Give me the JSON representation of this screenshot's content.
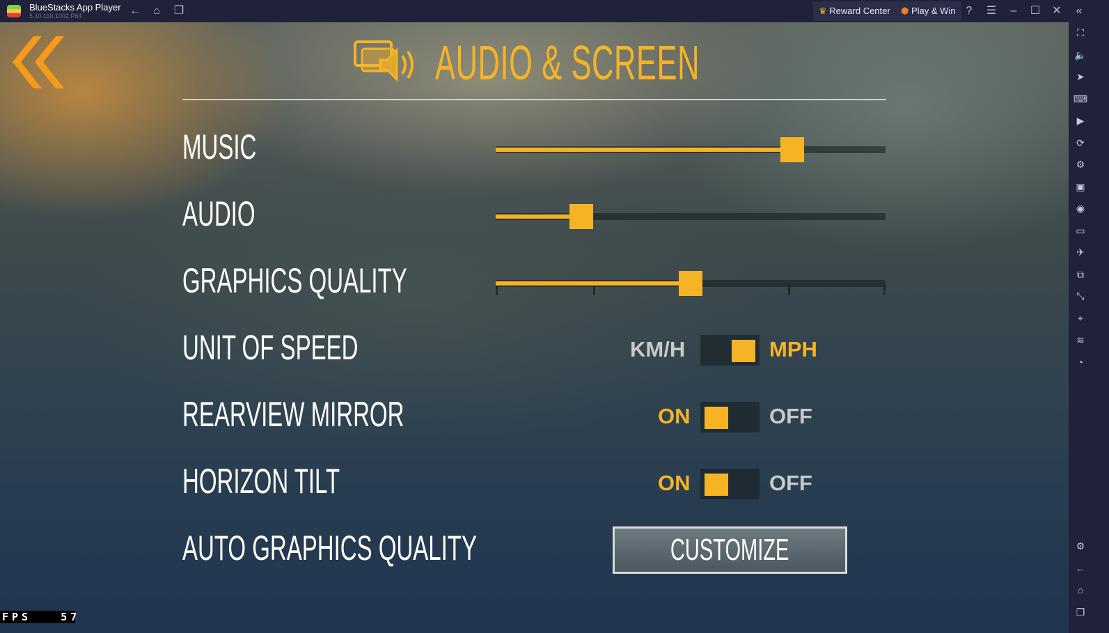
{
  "window": {
    "app_name": "BlueStacks App Player",
    "version": "5.10.110.1002 P64",
    "reward_center": "Reward Center",
    "play_win": "Play & Win"
  },
  "sidebar": {
    "icons": [
      "fullscreen-icon",
      "volume-icon",
      "pointer-icon",
      "keyboard-icon",
      "record-icon",
      "rotate-icon",
      "macro-icon",
      "apk-icon",
      "screenshot-icon",
      "folder-icon",
      "airplane-icon",
      "multi-instance-icon",
      "shake-icon",
      "location-icon",
      "layers-icon",
      "eco-mode-icon",
      "settings-icon",
      "back-icon",
      "home-icon",
      "recent-apps-icon"
    ]
  },
  "game": {
    "title": "AUDIO & SCREEN",
    "accent": "#f5b426",
    "music": {
      "label": "MUSIC",
      "value": 0.76
    },
    "audio": {
      "label": "AUDIO",
      "value": 0.22
    },
    "graphics": {
      "label": "GRAPHICS QUALITY",
      "level": 2,
      "levels": 5
    },
    "speed": {
      "label": "UNIT OF SPEED",
      "left": "KM/H",
      "right": "MPH",
      "selected": "MPH"
    },
    "mirror": {
      "label": "REARVIEW MIRROR",
      "left": "ON",
      "right": "OFF",
      "selected": "ON"
    },
    "tilt": {
      "label": "HORIZON TILT",
      "left": "ON",
      "right": "OFF",
      "selected": "ON"
    },
    "auto": {
      "label": "AUTO GRAPHICS QUALITY",
      "button": "CUSTOMIZE"
    },
    "fps": {
      "label": "FPS",
      "value": "57"
    }
  }
}
